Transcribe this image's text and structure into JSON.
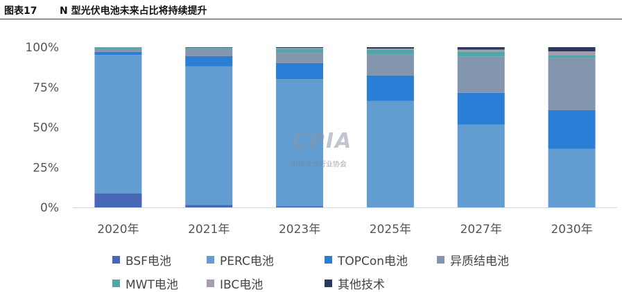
{
  "figure": {
    "label": "图表17",
    "title": "N 型光伏电池未来占比将持续提升"
  },
  "watermark": {
    "logo_text": "CPIA",
    "org_name": "中国光伏行业协会"
  },
  "colors": {
    "BSF": "#4668b4",
    "PERC": "#629dd2",
    "TOPCon": "#2b7ed6",
    "hetero": "#8396ad",
    "MWT": "#4fa8a4",
    "IBC": "#a79bb0",
    "other": "#2b3a5c"
  },
  "chart_data": {
    "type": "bar",
    "stacked": true,
    "title": "",
    "xlabel": "",
    "ylabel": "",
    "ylim": [
      0,
      100
    ],
    "y_ticks": [
      "0%",
      "25%",
      "50%",
      "75%",
      "100%"
    ],
    "categories": [
      "2020年",
      "2021年",
      "2023年",
      "2025年",
      "2027年",
      "2030年"
    ],
    "series": [
      {
        "name": "BSF电池",
        "key": "BSF",
        "values": [
          8.8,
          1.6,
          0.8,
          0,
          0,
          0
        ]
      },
      {
        "name": "PERC电池",
        "key": "PERC",
        "values": [
          86.4,
          86.5,
          79.2,
          66.4,
          51.6,
          36.5
        ]
      },
      {
        "name": "TOPCon电池",
        "key": "TOPCon",
        "values": [
          1.8,
          6.3,
          10.1,
          15.9,
          19.9,
          24.1
        ]
      },
      {
        "name": "异质结电池",
        "key": "hetero",
        "values": [
          1.5,
          4.3,
          6.4,
          13.2,
          22.8,
          32.6
        ]
      },
      {
        "name": "MWT电池",
        "key": "MWT",
        "values": [
          1.3,
          0.8,
          2.4,
          2.8,
          3.0,
          1.6
        ]
      },
      {
        "name": "IBC电池",
        "key": "IBC",
        "values": [
          0.2,
          0.3,
          0.6,
          0.8,
          1.2,
          2.6
        ]
      },
      {
        "name": "其他技术",
        "key": "other",
        "values": [
          0,
          0.2,
          0.5,
          0.9,
          1.5,
          2.6
        ]
      }
    ],
    "legend_position": "bottom",
    "grid": false
  }
}
